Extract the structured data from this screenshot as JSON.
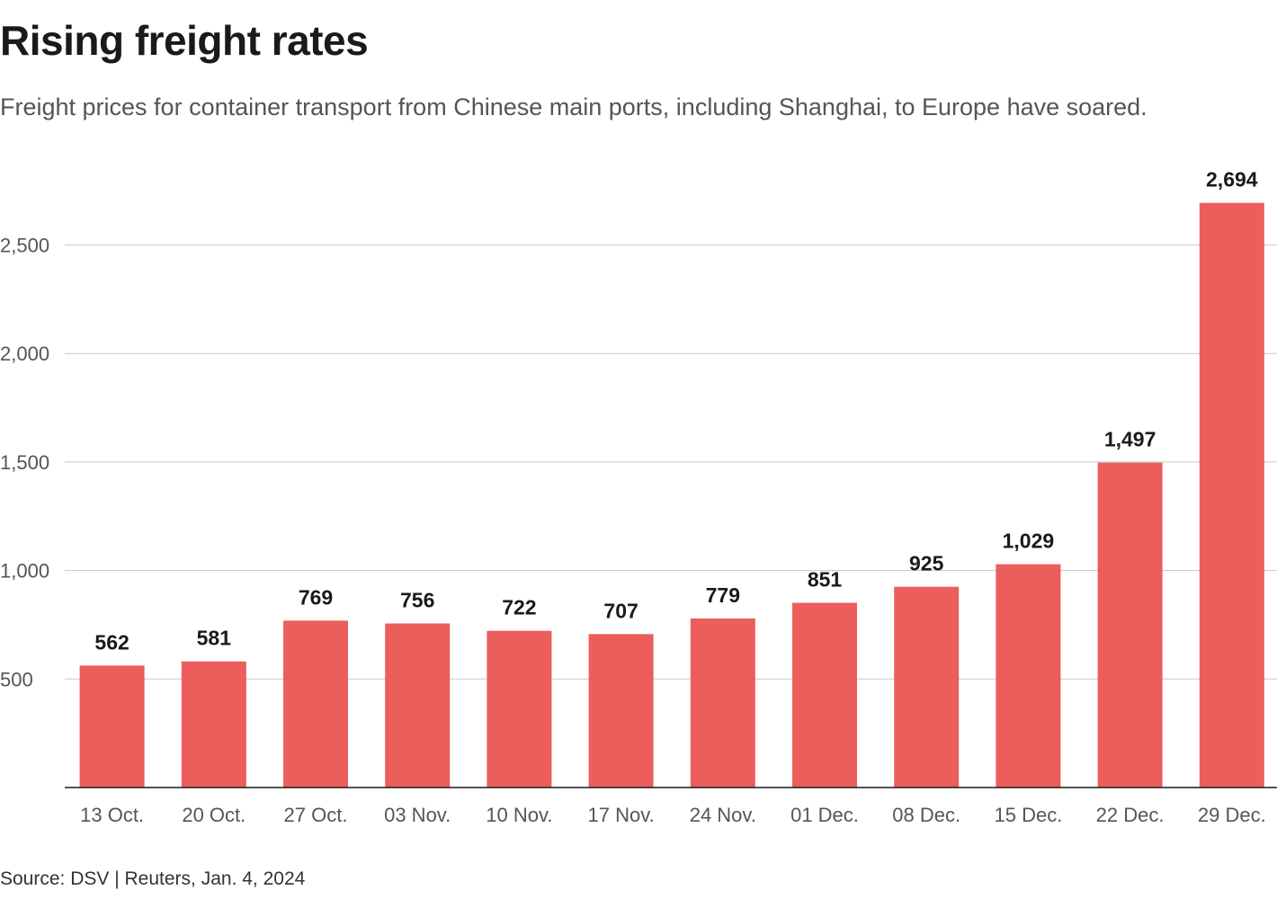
{
  "header": {
    "title": "Rising freight rates",
    "subtitle": "Freight prices for container transport from Chinese main ports, including Shanghai, to Europe have soared."
  },
  "footer": {
    "source": "Source: DSV | Reuters, Jan. 4, 2024"
  },
  "colors": {
    "bar": "#eb5e5b"
  },
  "chart_data": {
    "type": "bar",
    "title": "Rising freight rates",
    "subtitle": "Freight prices for container transport from Chinese main ports, including Shanghai, to Europe have soared.",
    "xlabel": "",
    "ylabel": "",
    "categories": [
      "13 Oct.",
      "20 Oct.",
      "27 Oct.",
      "03 Nov.",
      "10 Nov.",
      "17 Nov.",
      "24 Nov.",
      "01 Dec.",
      "08 Dec.",
      "15 Dec.",
      "22 Dec.",
      "29 Dec."
    ],
    "values": [
      562,
      581,
      769,
      756,
      722,
      707,
      779,
      851,
      925,
      1029,
      1497,
      2694
    ],
    "value_labels": [
      "562",
      "581",
      "769",
      "756",
      "722",
      "707",
      "779",
      "851",
      "925",
      "1,029",
      "1,497",
      "2,694"
    ],
    "yticks": [
      500,
      1000,
      1500,
      2000,
      2500
    ],
    "ytick_labels": [
      "500",
      "1,000",
      "1,500",
      "2,000",
      "2,500"
    ],
    "ylim": [
      0,
      2700
    ],
    "grid": true,
    "legend": "none",
    "source": "Source: DSV | Reuters, Jan. 4, 2024"
  }
}
